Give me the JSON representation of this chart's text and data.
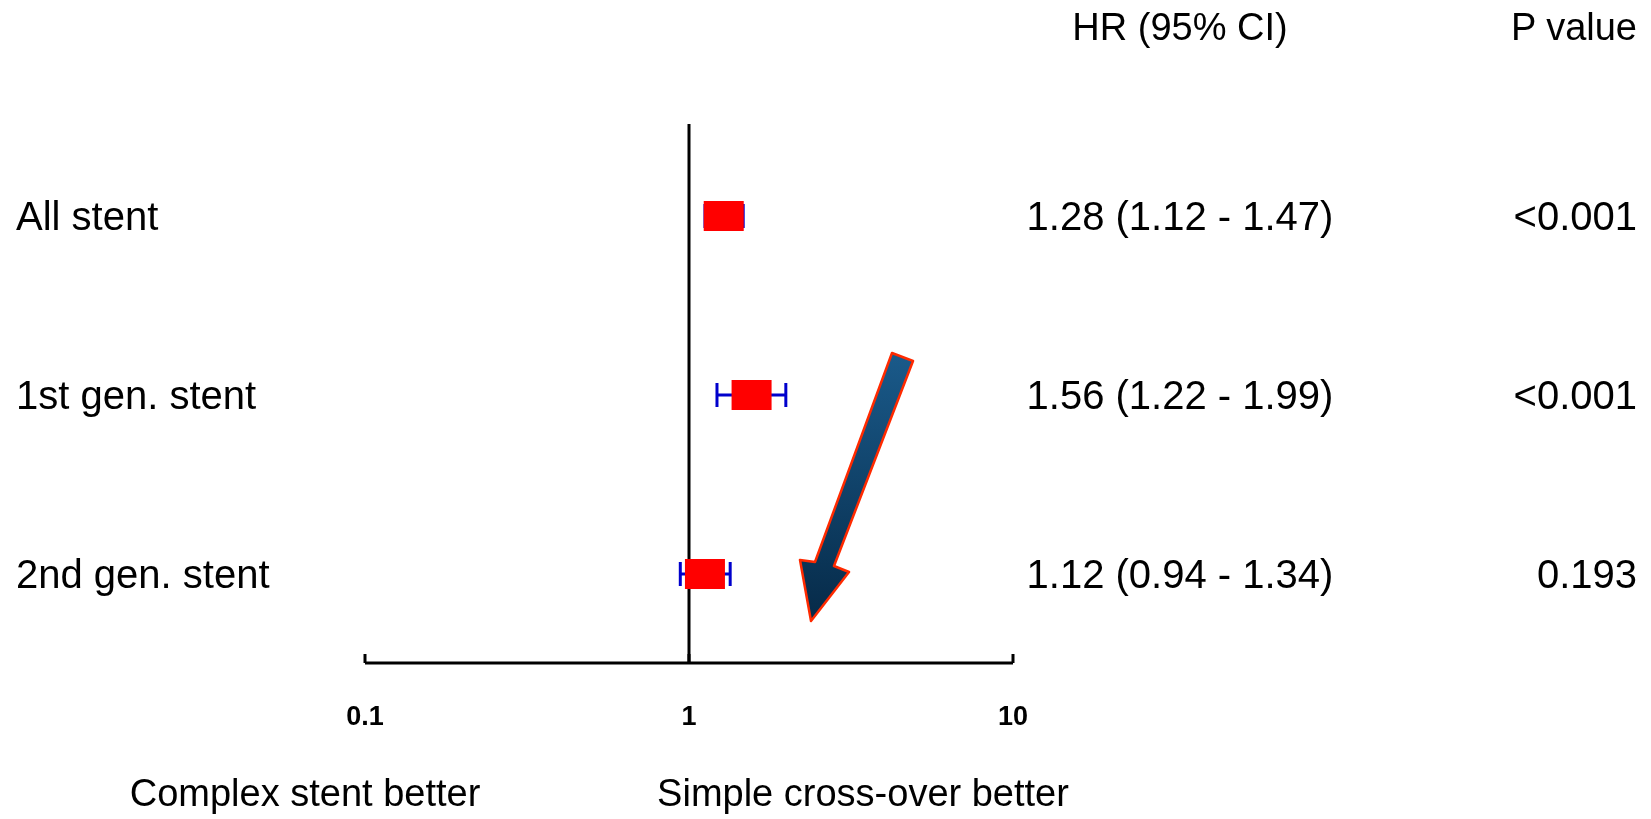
{
  "chart_data": {
    "type": "scatter",
    "orientation": "horizontal",
    "categories": [
      "All stent",
      "1st gen. stent",
      "2nd gen. stent"
    ],
    "values": [
      1.28,
      1.56,
      1.12
    ],
    "errors": [
      [
        1.12,
        1.47
      ],
      [
        1.22,
        1.99
      ],
      [
        0.94,
        1.34
      ]
    ],
    "value_labels": [
      "1.28 (1.12 - 1.47)",
      "1.56 (1.22 - 1.99)",
      "1.12 (0.94 - 1.34)"
    ],
    "color": "#ff0000",
    "marker": "square",
    "log": "x",
    "xlim": [
      0.1,
      10
    ],
    "xticks": [
      0.1,
      1,
      10
    ],
    "ref_lines": [
      {
        "axis": "x",
        "value": 1,
        "color": "#000000"
      }
    ],
    "annotations": [
      "HR (95% CI)",
      "P value",
      "Complex stent better",
      "Simple cross-over better",
      "<0.001",
      "<0.001",
      "0.193"
    ]
  }
}
